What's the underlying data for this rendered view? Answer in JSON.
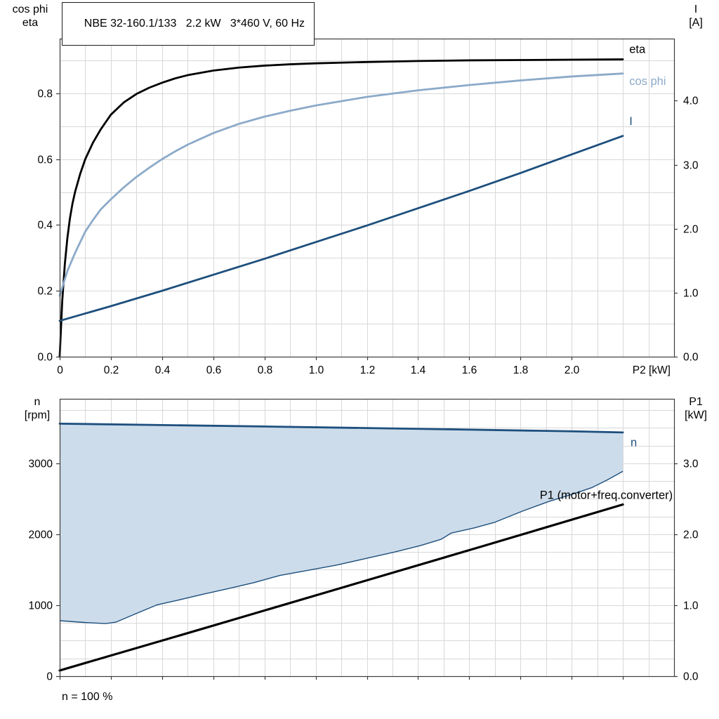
{
  "header": {
    "title": "NBE 32-160.1/133   2.2 kW   3*460 V, 60 Hz"
  },
  "footer": {
    "note": "n = 100 %"
  },
  "colors": {
    "black": "#000000",
    "dark_blue": "#1d4f7d",
    "light_blue": "#8caac9",
    "band_fill": "#cddcea",
    "grid": "#d8d8d8",
    "axis": "#3c3c3c"
  },
  "chart_data": [
    {
      "type": "line",
      "title": "NBE 32-160.1/133   2.2 kW   3*460 V, 60 Hz",
      "x_axis": {
        "label": "P2 [kW]",
        "range": [
          0,
          2.4
        ],
        "grid_step": 0.1,
        "show_tick_labels": true,
        "ticks": [
          0,
          0.2,
          0.4,
          0.6,
          0.8,
          1.0,
          1.2,
          1.4,
          1.6,
          1.8,
          2.0
        ],
        "tick_labels": [
          "0",
          "0.2",
          "0.4",
          "0.6",
          "0.8",
          "1.0",
          "1.2",
          "1.4",
          "1.6",
          "1.8",
          "2.0"
        ]
      },
      "left_axis": {
        "title_lines": [
          "cos phi",
          "eta"
        ],
        "range": [
          0,
          0.966
        ],
        "grid_step": 0.1,
        "ticks": [
          0,
          0.2,
          0.4,
          0.6,
          0.8
        ],
        "tick_labels": [
          "0.0",
          "0.2",
          "0.4",
          "0.6",
          "0.8"
        ]
      },
      "right_axis": {
        "title_lines": [
          "I",
          "[A]"
        ],
        "range": [
          0,
          4.97
        ],
        "ticks": [
          0,
          1,
          2,
          3,
          4
        ],
        "tick_labels": [
          "0.0",
          "1.0",
          "2.0",
          "3.0",
          "4.0"
        ]
      },
      "series": [
        {
          "name": "eta",
          "axis": "left",
          "color": "#000000",
          "width": 2.8,
          "label": "eta",
          "label_color": "#000000",
          "label_pos": [
            2.225,
            0.922
          ],
          "label_anchor": "start",
          "points": [
            [
              0,
              0
            ],
            [
              0.01,
              0.17
            ],
            [
              0.02,
              0.28
            ],
            [
              0.03,
              0.36
            ],
            [
              0.04,
              0.42
            ],
            [
              0.05,
              0.465
            ],
            [
              0.06,
              0.5
            ],
            [
              0.08,
              0.555
            ],
            [
              0.1,
              0.6
            ],
            [
              0.13,
              0.65
            ],
            [
              0.16,
              0.69
            ],
            [
              0.2,
              0.735
            ],
            [
              0.25,
              0.772
            ],
            [
              0.3,
              0.798
            ],
            [
              0.35,
              0.817
            ],
            [
              0.4,
              0.832
            ],
            [
              0.45,
              0.845
            ],
            [
              0.5,
              0.855
            ],
            [
              0.6,
              0.869
            ],
            [
              0.7,
              0.878
            ],
            [
              0.8,
              0.884
            ],
            [
              0.9,
              0.888
            ],
            [
              1.0,
              0.891
            ],
            [
              1.2,
              0.895
            ],
            [
              1.4,
              0.898
            ],
            [
              1.6,
              0.9
            ],
            [
              1.8,
              0.901
            ],
            [
              2.0,
              0.902
            ],
            [
              2.2,
              0.903
            ]
          ]
        },
        {
          "name": "cos phi",
          "axis": "left",
          "color": "#8caac9",
          "width": 2.8,
          "label": "cos phi",
          "label_color": "#8caac9",
          "label_pos": [
            2.225,
            0.825
          ],
          "label_anchor": "start",
          "points": [
            [
              0,
              0.185
            ],
            [
              0.03,
              0.26
            ],
            [
              0.06,
              0.315
            ],
            [
              0.1,
              0.38
            ],
            [
              0.13,
              0.415
            ],
            [
              0.16,
              0.447
            ],
            [
              0.2,
              0.478
            ],
            [
              0.25,
              0.514
            ],
            [
              0.3,
              0.546
            ],
            [
              0.35,
              0.574
            ],
            [
              0.4,
              0.6
            ],
            [
              0.45,
              0.623
            ],
            [
              0.5,
              0.644
            ],
            [
              0.6,
              0.679
            ],
            [
              0.7,
              0.707
            ],
            [
              0.8,
              0.729
            ],
            [
              0.9,
              0.747
            ],
            [
              1.0,
              0.763
            ],
            [
              1.1,
              0.776
            ],
            [
              1.2,
              0.789
            ],
            [
              1.4,
              0.809
            ],
            [
              1.6,
              0.825
            ],
            [
              1.8,
              0.839
            ],
            [
              2.0,
              0.851
            ],
            [
              2.2,
              0.86
            ]
          ]
        },
        {
          "name": "I",
          "axis": "right",
          "color": "#1d4f7d",
          "width": 2.8,
          "label": "I",
          "label_color": "#1d4f7d",
          "label_pos": [
            2.225,
            3.62
          ],
          "label_anchor": "start",
          "points": [
            [
              0,
              0.56
            ],
            [
              0.2,
              0.79
            ],
            [
              0.4,
              1.03
            ],
            [
              0.6,
              1.28
            ],
            [
              0.8,
              1.53
            ],
            [
              1.0,
              1.79
            ],
            [
              1.2,
              2.05
            ],
            [
              1.4,
              2.32
            ],
            [
              1.6,
              2.59
            ],
            [
              1.8,
              2.87
            ],
            [
              2.0,
              3.16
            ],
            [
              2.2,
              3.45
            ]
          ]
        }
      ]
    },
    {
      "type": "line",
      "title": "",
      "x_axis": {
        "label": "",
        "range": [
          0,
          2.4
        ],
        "grid_step": 0.1,
        "show_tick_labels": false,
        "ticks": [
          0,
          0.2,
          0.4,
          0.6,
          0.8,
          1.0,
          1.2,
          1.4,
          1.6,
          1.8,
          2.0,
          2.2
        ],
        "tick_labels": []
      },
      "left_axis": {
        "title_lines": [
          "n",
          "[rpm]"
        ],
        "range": [
          0,
          3910
        ],
        "grid_step": 250,
        "ticks": [
          0,
          1000,
          2000,
          3000
        ],
        "tick_labels": [
          "0",
          "1000",
          "2000",
          "3000"
        ]
      },
      "right_axis": {
        "title_lines": [
          "P1",
          "[kW]"
        ],
        "range": [
          0,
          3.91
        ],
        "ticks": [
          0,
          1,
          2,
          3
        ],
        "tick_labels": [
          "0.0",
          "1.0",
          "2.0",
          "3.0"
        ]
      },
      "band": {
        "fill": "#cddcea",
        "lower_stroke": "#1d4f7d",
        "lower_width": 1.4,
        "upper_series": "n",
        "lower_points": [
          [
            0,
            782
          ],
          [
            0.1,
            756
          ],
          [
            0.18,
            742
          ],
          [
            0.22,
            762
          ],
          [
            0.3,
            885
          ],
          [
            0.38,
            1005
          ],
          [
            0.46,
            1070
          ],
          [
            0.56,
            1155
          ],
          [
            0.66,
            1235
          ],
          [
            0.76,
            1320
          ],
          [
            0.86,
            1420
          ],
          [
            0.96,
            1485
          ],
          [
            1.08,
            1565
          ],
          [
            1.2,
            1662
          ],
          [
            1.31,
            1752
          ],
          [
            1.41,
            1842
          ],
          [
            1.49,
            1930
          ],
          [
            1.53,
            2018
          ],
          [
            1.62,
            2090
          ],
          [
            1.7,
            2170
          ],
          [
            1.81,
            2330
          ],
          [
            1.91,
            2462
          ],
          [
            2.0,
            2562
          ],
          [
            2.08,
            2660
          ],
          [
            2.14,
            2768
          ],
          [
            2.2,
            2888
          ]
        ]
      },
      "series": [
        {
          "name": "n",
          "axis": "left",
          "color": "#1d4f7d",
          "width": 2.8,
          "label": "n",
          "label_color": "#1d4f7d",
          "label_pos": [
            2.23,
            3240
          ],
          "label_anchor": "start",
          "points": [
            [
              0,
              3560
            ],
            [
              0.4,
              3540
            ],
            [
              0.8,
              3520
            ],
            [
              1.2,
              3498
            ],
            [
              1.6,
              3476
            ],
            [
              2.0,
              3452
            ],
            [
              2.2,
              3436
            ]
          ]
        },
        {
          "name": "P1",
          "axis": "right",
          "color": "#000000",
          "width": 3.2,
          "label": "P1 (motor+freq.converter)",
          "label_color": "#000000",
          "label_pos": [
            2.395,
            2.5
          ],
          "label_anchor": "end",
          "points": [
            [
              0,
              0.08
            ],
            [
              0.55,
              0.66
            ],
            [
              1.1,
              1.245
            ],
            [
              1.65,
              1.83
            ],
            [
              2.2,
              2.42
            ]
          ]
        }
      ],
      "footnote": "n = 100 %"
    }
  ]
}
